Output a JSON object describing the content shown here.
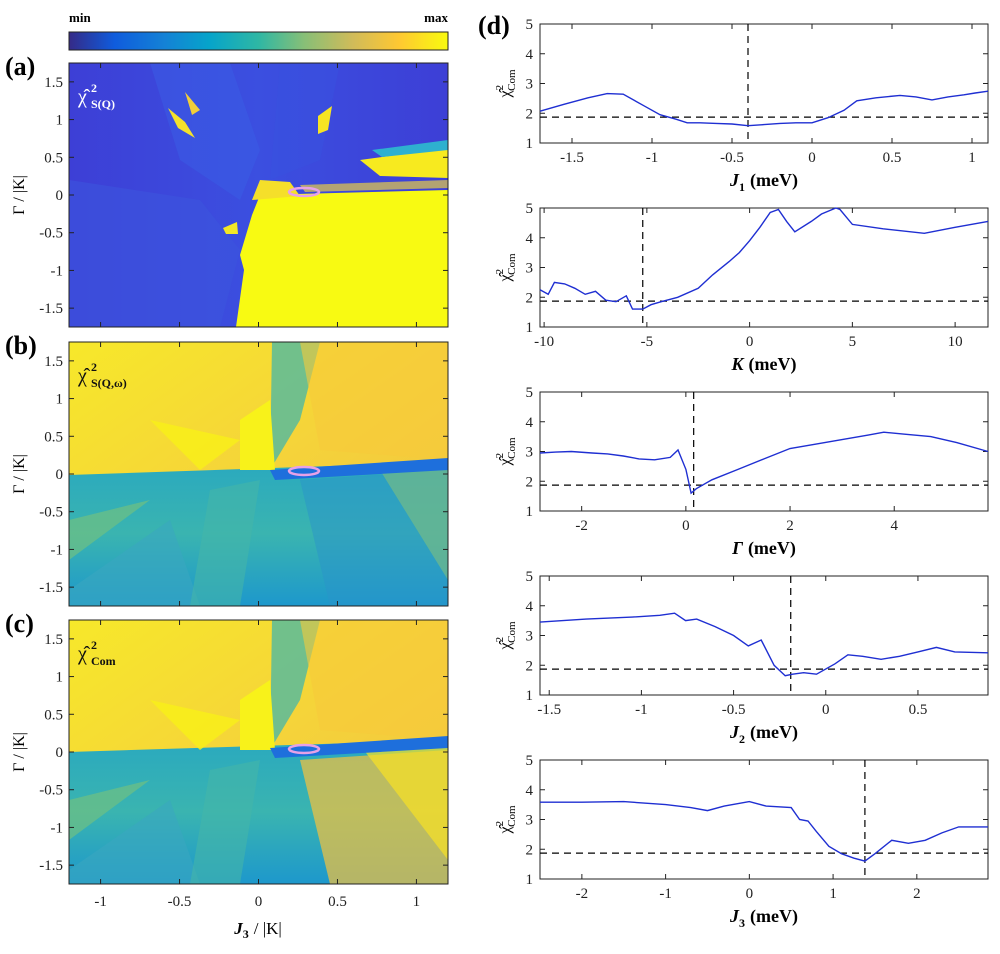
{
  "colorbar": {
    "min_label": "min",
    "max_label": "max"
  },
  "colors": {
    "parula": [
      "#352a87",
      "#0f5cdd",
      "#1481d6",
      "#06a4ca",
      "#2eb7a4",
      "#87bf77",
      "#d1bb59",
      "#fec832",
      "#f9fb0e"
    ],
    "curve": "#1f2fd2",
    "ellipse": "#e7a1e7",
    "ref_line": "#000000"
  },
  "heatmaps": {
    "x_label_main": "J",
    "x_label_sub": "3",
    "x_label_rest": "/ |K|",
    "y_label": "Γ / |K|",
    "x_ticks": [
      -1,
      -0.5,
      0,
      0.5,
      1
    ],
    "x_tick_labels": [
      "-1",
      "-0.5",
      "0",
      "0.5",
      "1"
    ],
    "y_ticks": [
      1.5,
      1,
      0.5,
      0,
      -0.5,
      -1,
      -1.5
    ],
    "y_tick_labels": [
      "1.5",
      "1",
      "0.5",
      "0",
      "-0.5",
      "-1",
      "-1.5"
    ],
    "panels": [
      {
        "tag": "(a)",
        "chi": "χ̂",
        "sup": "2",
        "sub": "S(Q)"
      },
      {
        "tag": "(b)",
        "chi": "χ̂",
        "sup": "2",
        "sub": "S(Q,ω)"
      },
      {
        "tag": "(c)",
        "chi": "χ̂",
        "sup": "2",
        "sub": "Com"
      }
    ]
  },
  "line_tag": "(d)",
  "chart_data": [
    {
      "type": "heatmap",
      "panel": "(a)",
      "title": "χ̂²_S(Q)",
      "xlabel": "J3 / |K|",
      "ylabel": "Γ / |K|",
      "xlim": [
        -1.2,
        1.2
      ],
      "ylim": [
        -1.75,
        1.75
      ],
      "colorbar": [
        "min",
        "max"
      ],
      "minimum": {
        "x": 0.28,
        "y": 0.05,
        "marker": "ellipse"
      }
    },
    {
      "type": "heatmap",
      "panel": "(b)",
      "title": "χ̂²_S(Q,ω)",
      "xlabel": "J3 / |K|",
      "ylabel": "Γ / |K|",
      "xlim": [
        -1.2,
        1.2
      ],
      "ylim": [
        -1.75,
        1.75
      ],
      "colorbar": [
        "min",
        "max"
      ],
      "minimum": {
        "x": 0.28,
        "y": 0.05,
        "marker": "ellipse"
      }
    },
    {
      "type": "heatmap",
      "panel": "(c)",
      "title": "χ̂²_Com",
      "xlabel": "J3 / |K|",
      "ylabel": "Γ / |K|",
      "xlim": [
        -1.2,
        1.2
      ],
      "ylim": [
        -1.75,
        1.75
      ],
      "colorbar": [
        "min",
        "max"
      ],
      "minimum": {
        "x": 0.28,
        "y": 0.05,
        "marker": "ellipse"
      }
    },
    {
      "type": "line",
      "panel": "(d)-1",
      "xlabel_main": "J",
      "xlabel_sub": "1",
      "xlabel_unit": "(meV)",
      "ylabel": "χ̂²_Com",
      "ylabel_sub": "Com",
      "xlim": [
        -1.7,
        1.1
      ],
      "ylim": [
        1,
        5
      ],
      "xticks": [
        -1.5,
        -1,
        -0.5,
        0,
        0.5,
        1
      ],
      "xtick_labels": [
        "-1.5",
        "-1",
        "-0.5",
        "0",
        "0.5",
        "1"
      ],
      "yticks": [
        1,
        2,
        3,
        4,
        5
      ],
      "ytick_labels": [
        "1",
        "2",
        "3",
        "4",
        "5"
      ],
      "vline": -0.4,
      "hline": 1.87,
      "x": [
        -1.7,
        -1.55,
        -1.4,
        -1.28,
        -1.18,
        -1.05,
        -0.95,
        -0.85,
        -0.78,
        -0.7,
        -0.6,
        -0.5,
        -0.4,
        -0.3,
        -0.2,
        -0.1,
        0,
        0.1,
        0.2,
        0.28,
        0.4,
        0.55,
        0.65,
        0.75,
        0.85,
        0.95,
        1.02,
        1.1
      ],
      "y": [
        2.07,
        2.3,
        2.52,
        2.66,
        2.64,
        2.25,
        1.95,
        1.8,
        1.68,
        1.68,
        1.66,
        1.64,
        1.58,
        1.62,
        1.66,
        1.68,
        1.68,
        1.85,
        2.1,
        2.42,
        2.52,
        2.6,
        2.55,
        2.45,
        2.55,
        2.62,
        2.68,
        2.74
      ]
    },
    {
      "type": "line",
      "panel": "(d)-2",
      "xlabel_main": "K",
      "xlabel_sub": "",
      "xlabel_unit": "(meV)",
      "ylabel": "χ̂²_Com",
      "ylabel_sub": "Com",
      "xlim": [
        -10.2,
        11.6
      ],
      "ylim": [
        1,
        5
      ],
      "xticks": [
        -10,
        -5,
        0,
        5,
        10
      ],
      "xtick_labels": [
        "-10",
        "-5",
        "0",
        "5",
        "10"
      ],
      "yticks": [
        1,
        2,
        3,
        4,
        5
      ],
      "ytick_labels": [
        "1",
        "2",
        "3",
        "4",
        "5"
      ],
      "vline": -5.2,
      "hline": 1.87,
      "x": [
        -10.2,
        -9.8,
        -9.5,
        -9,
        -8.5,
        -8,
        -7.5,
        -7,
        -6.5,
        -6,
        -5.7,
        -5.2,
        -4.8,
        -4.3,
        -3.5,
        -2.5,
        -1.8,
        -1,
        -0.5,
        0,
        0.5,
        1,
        1.4,
        1.8,
        2.2,
        3,
        3.5,
        4.2,
        4.4,
        5,
        6.5,
        8.5,
        10,
        11.6
      ],
      "y": [
        2.25,
        2.1,
        2.5,
        2.45,
        2.3,
        2.1,
        2.2,
        1.9,
        1.85,
        2.05,
        1.6,
        1.6,
        1.75,
        1.85,
        2.0,
        2.3,
        2.75,
        3.2,
        3.5,
        3.9,
        4.35,
        4.85,
        4.95,
        4.55,
        4.2,
        4.55,
        4.8,
        5.0,
        4.95,
        4.45,
        4.3,
        4.15,
        4.35,
        4.55
      ]
    },
    {
      "type": "line",
      "panel": "(d)-3",
      "xlabel_main": "Γ",
      "xlabel_sub": "",
      "xlabel_unit": "(meV)",
      "ylabel": "χ̂²_Com",
      "ylabel_sub": "Com",
      "xlim": [
        -2.8,
        5.8
      ],
      "ylim": [
        1,
        5
      ],
      "xticks": [
        -2,
        0,
        2,
        4
      ],
      "xtick_labels": [
        "-2",
        "0",
        "2",
        "4"
      ],
      "yticks": [
        1,
        2,
        3,
        4,
        5
      ],
      "ytick_labels": [
        "1",
        "2",
        "3",
        "4",
        "5"
      ],
      "vline": 0.15,
      "hline": 1.87,
      "x": [
        -2.8,
        -2.5,
        -2.2,
        -1.8,
        -1.5,
        -1.2,
        -0.9,
        -0.6,
        -0.3,
        -0.15,
        0,
        0.1,
        0.2,
        0.5,
        1,
        1.5,
        2,
        2.5,
        3,
        3.5,
        3.8,
        4.2,
        4.7,
        5.2,
        5.8
      ],
      "y": [
        2.95,
        2.98,
        3.0,
        2.95,
        2.92,
        2.85,
        2.75,
        2.72,
        2.8,
        3.05,
        2.4,
        1.6,
        1.75,
        2.05,
        2.4,
        2.75,
        3.1,
        3.25,
        3.4,
        3.55,
        3.65,
        3.58,
        3.5,
        3.3,
        3.0
      ]
    },
    {
      "type": "line",
      "panel": "(d)-4",
      "xlabel_main": "J",
      "xlabel_sub": "2",
      "xlabel_unit": "(meV)",
      "ylabel": "χ̂²_Com",
      "ylabel_sub": "Com",
      "xlim": [
        -1.55,
        0.88
      ],
      "ylim": [
        1,
        5
      ],
      "xticks": [
        -1.5,
        -1,
        -0.5,
        0,
        0.5
      ],
      "xtick_labels": [
        "-1.5",
        "-1",
        "-0.5",
        "0",
        "0.5"
      ],
      "yticks": [
        1,
        2,
        3,
        4,
        5
      ],
      "ytick_labels": [
        "1",
        "2",
        "3",
        "4",
        "5"
      ],
      "vline": -0.19,
      "hline": 1.87,
      "x": [
        -1.55,
        -1.3,
        -1.05,
        -0.9,
        -0.82,
        -0.76,
        -0.7,
        -0.6,
        -0.5,
        -0.42,
        -0.35,
        -0.28,
        -0.22,
        -0.18,
        -0.12,
        -0.05,
        0.05,
        0.12,
        0.2,
        0.3,
        0.4,
        0.5,
        0.6,
        0.7,
        0.88
      ],
      "y": [
        3.45,
        3.55,
        3.62,
        3.68,
        3.75,
        3.5,
        3.55,
        3.3,
        3.0,
        2.65,
        2.85,
        2.0,
        1.65,
        1.7,
        1.75,
        1.7,
        2.05,
        2.35,
        2.3,
        2.2,
        2.3,
        2.45,
        2.6,
        2.45,
        2.42
      ]
    },
    {
      "type": "line",
      "panel": "(d)-5",
      "xlabel_main": "J",
      "xlabel_sub": "3",
      "xlabel_unit": "(meV)",
      "ylabel": "χ̂²_Com",
      "ylabel_sub": "Com",
      "xlim": [
        -2.5,
        2.85
      ],
      "ylim": [
        1,
        5
      ],
      "xticks": [
        -2,
        -1,
        0,
        1,
        2
      ],
      "xtick_labels": [
        "-2",
        "-1",
        "0",
        "1",
        "2"
      ],
      "yticks": [
        1,
        2,
        3,
        4,
        5
      ],
      "ytick_labels": [
        "1",
        "2",
        "3",
        "4",
        "5"
      ],
      "vline": 1.38,
      "hline": 1.87,
      "x": [
        -2.5,
        -2,
        -1.5,
        -1,
        -0.7,
        -0.5,
        -0.3,
        0,
        0.2,
        0.5,
        0.6,
        0.7,
        0.8,
        0.95,
        1.1,
        1.25,
        1.38,
        1.5,
        1.7,
        1.9,
        2.1,
        2.3,
        2.5,
        2.85
      ],
      "y": [
        3.58,
        3.58,
        3.6,
        3.5,
        3.4,
        3.3,
        3.45,
        3.6,
        3.45,
        3.4,
        3.0,
        2.95,
        2.6,
        2.1,
        1.85,
        1.7,
        1.6,
        1.85,
        2.3,
        2.2,
        2.3,
        2.55,
        2.75,
        2.75
      ]
    }
  ]
}
